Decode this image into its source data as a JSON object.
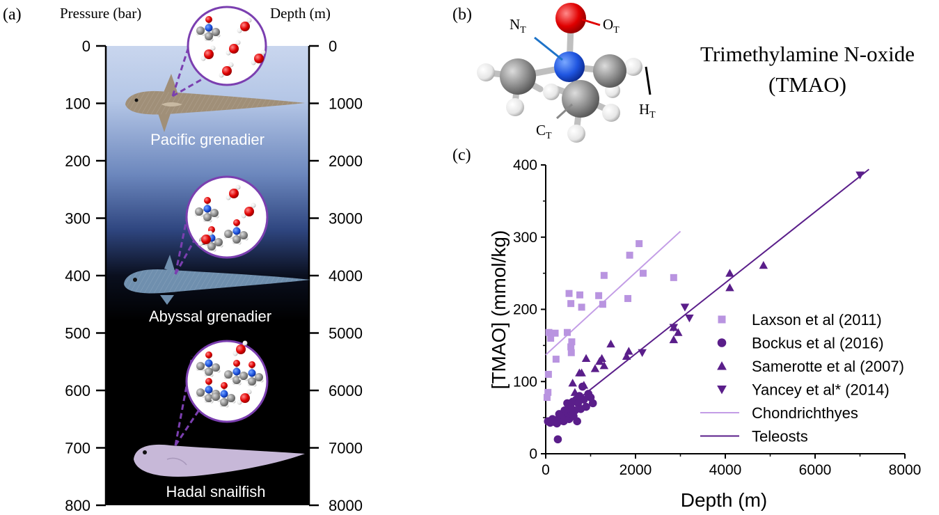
{
  "panel_a": {
    "label": "(a)",
    "left_axis_title": "Pressure (bar)",
    "right_axis_title": "Depth (m)",
    "pressure_ticks": [
      "0",
      "100",
      "200",
      "300",
      "400",
      "500",
      "600",
      "700",
      "800"
    ],
    "depth_ticks": [
      "0",
      "1000",
      "2000",
      "3000",
      "4000",
      "5000",
      "6000",
      "7000",
      "8000"
    ],
    "fish": [
      {
        "name": "Pacific grenadier",
        "depth_m": 1000,
        "color": "#a08f78"
      },
      {
        "name": "Abyssal grenadier",
        "depth_m": 4000,
        "color": "#6f8fae"
      },
      {
        "name": "Hadal snailfish",
        "depth_m": 7000,
        "color": "#c7b8d8"
      }
    ]
  },
  "panel_b": {
    "label": "(b)",
    "title_line1": "Trimethylamine N-oxide",
    "title_line2": "(TMAO)",
    "atom_labels": {
      "n": "N",
      "o": "O",
      "c": "C",
      "h": "H",
      "subscript": "T"
    }
  },
  "panel_c": {
    "label": "(c)"
  },
  "chart_data": {
    "type": "scatter",
    "xlabel": "Depth (m)",
    "ylabel": "[TMAO] (mmol/kg)",
    "xlim": [
      0,
      8000
    ],
    "ylim": [
      0,
      400
    ],
    "xticks": [
      "0",
      "2000",
      "4000",
      "6000",
      "8000"
    ],
    "yticks": [
      "0",
      "100",
      "200",
      "300",
      "400"
    ],
    "legend_position": "right",
    "series": [
      {
        "name": "Laxson et al (2011)",
        "marker": "square",
        "color": "#b994e0",
        "points": [
          [
            30,
            78
          ],
          [
            50,
            85
          ],
          [
            60,
            110
          ],
          [
            70,
            168
          ],
          [
            110,
            160
          ],
          [
            210,
            167
          ],
          [
            230,
            131
          ],
          [
            480,
            168
          ],
          [
            520,
            222
          ],
          [
            560,
            208
          ],
          [
            560,
            148
          ],
          [
            570,
            140
          ],
          [
            580,
            155
          ],
          [
            760,
            220
          ],
          [
            800,
            203
          ],
          [
            1180,
            219
          ],
          [
            1270,
            207
          ],
          [
            1300,
            247
          ],
          [
            1830,
            215
          ],
          [
            1870,
            275
          ],
          [
            2080,
            291
          ],
          [
            2170,
            250
          ],
          [
            2850,
            244
          ]
        ]
      },
      {
        "name": "Bockus et al (2016)",
        "marker": "circle",
        "color": "#5a1e8a",
        "points": [
          [
            50,
            45
          ],
          [
            100,
            43
          ],
          [
            150,
            48
          ],
          [
            200,
            44
          ],
          [
            250,
            42
          ],
          [
            270,
            20
          ],
          [
            300,
            55
          ],
          [
            320,
            50
          ],
          [
            350,
            46
          ],
          [
            380,
            52
          ],
          [
            400,
            45
          ],
          [
            420,
            60
          ],
          [
            450,
            50
          ],
          [
            480,
            70
          ],
          [
            500,
            55
          ],
          [
            520,
            48
          ],
          [
            550,
            65
          ],
          [
            570,
            58
          ],
          [
            600,
            72
          ],
          [
            620,
            52
          ],
          [
            650,
            60
          ],
          [
            680,
            75
          ],
          [
            700,
            45
          ],
          [
            720,
            70
          ],
          [
            750,
            80
          ],
          [
            780,
            62
          ],
          [
            820,
            93
          ],
          [
            850,
            75
          ],
          [
            900,
            65
          ],
          [
            950,
            83
          ],
          [
            1000,
            78
          ],
          [
            1050,
            70
          ]
        ]
      },
      {
        "name": "Samerotte et al (2007)",
        "marker": "triangle-up",
        "color": "#5a1e8a",
        "points": [
          [
            350,
            55
          ],
          [
            450,
            62
          ],
          [
            600,
            98
          ],
          [
            650,
            85
          ],
          [
            750,
            112
          ],
          [
            800,
            112
          ],
          [
            850,
            95
          ],
          [
            900,
            132
          ],
          [
            1100,
            118
          ],
          [
            1200,
            128
          ],
          [
            1250,
            132
          ],
          [
            1300,
            122
          ],
          [
            1450,
            152
          ],
          [
            1800,
            135
          ],
          [
            1850,
            142
          ],
          [
            2850,
            158
          ],
          [
            2850,
            175
          ],
          [
            2950,
            168
          ],
          [
            4100,
            230
          ],
          [
            4100,
            250
          ],
          [
            4850,
            261
          ]
        ]
      },
      {
        "name": "Yancey et al* (2014)",
        "marker": "triangle-down",
        "color": "#5a1e8a",
        "points": [
          [
            2150,
            140
          ],
          [
            2850,
            175
          ],
          [
            3100,
            203
          ],
          [
            3200,
            188
          ],
          [
            7000,
            386
          ]
        ]
      },
      {
        "name": "Chondrichthyes",
        "marker": "line",
        "color": "#c39de6",
        "points": [
          [
            0,
            137
          ],
          [
            3000,
            308
          ]
        ]
      },
      {
        "name": "Teleosts",
        "marker": "line",
        "color": "#5a1e8a",
        "points": [
          [
            0,
            40
          ],
          [
            7200,
            394
          ]
        ]
      }
    ]
  }
}
